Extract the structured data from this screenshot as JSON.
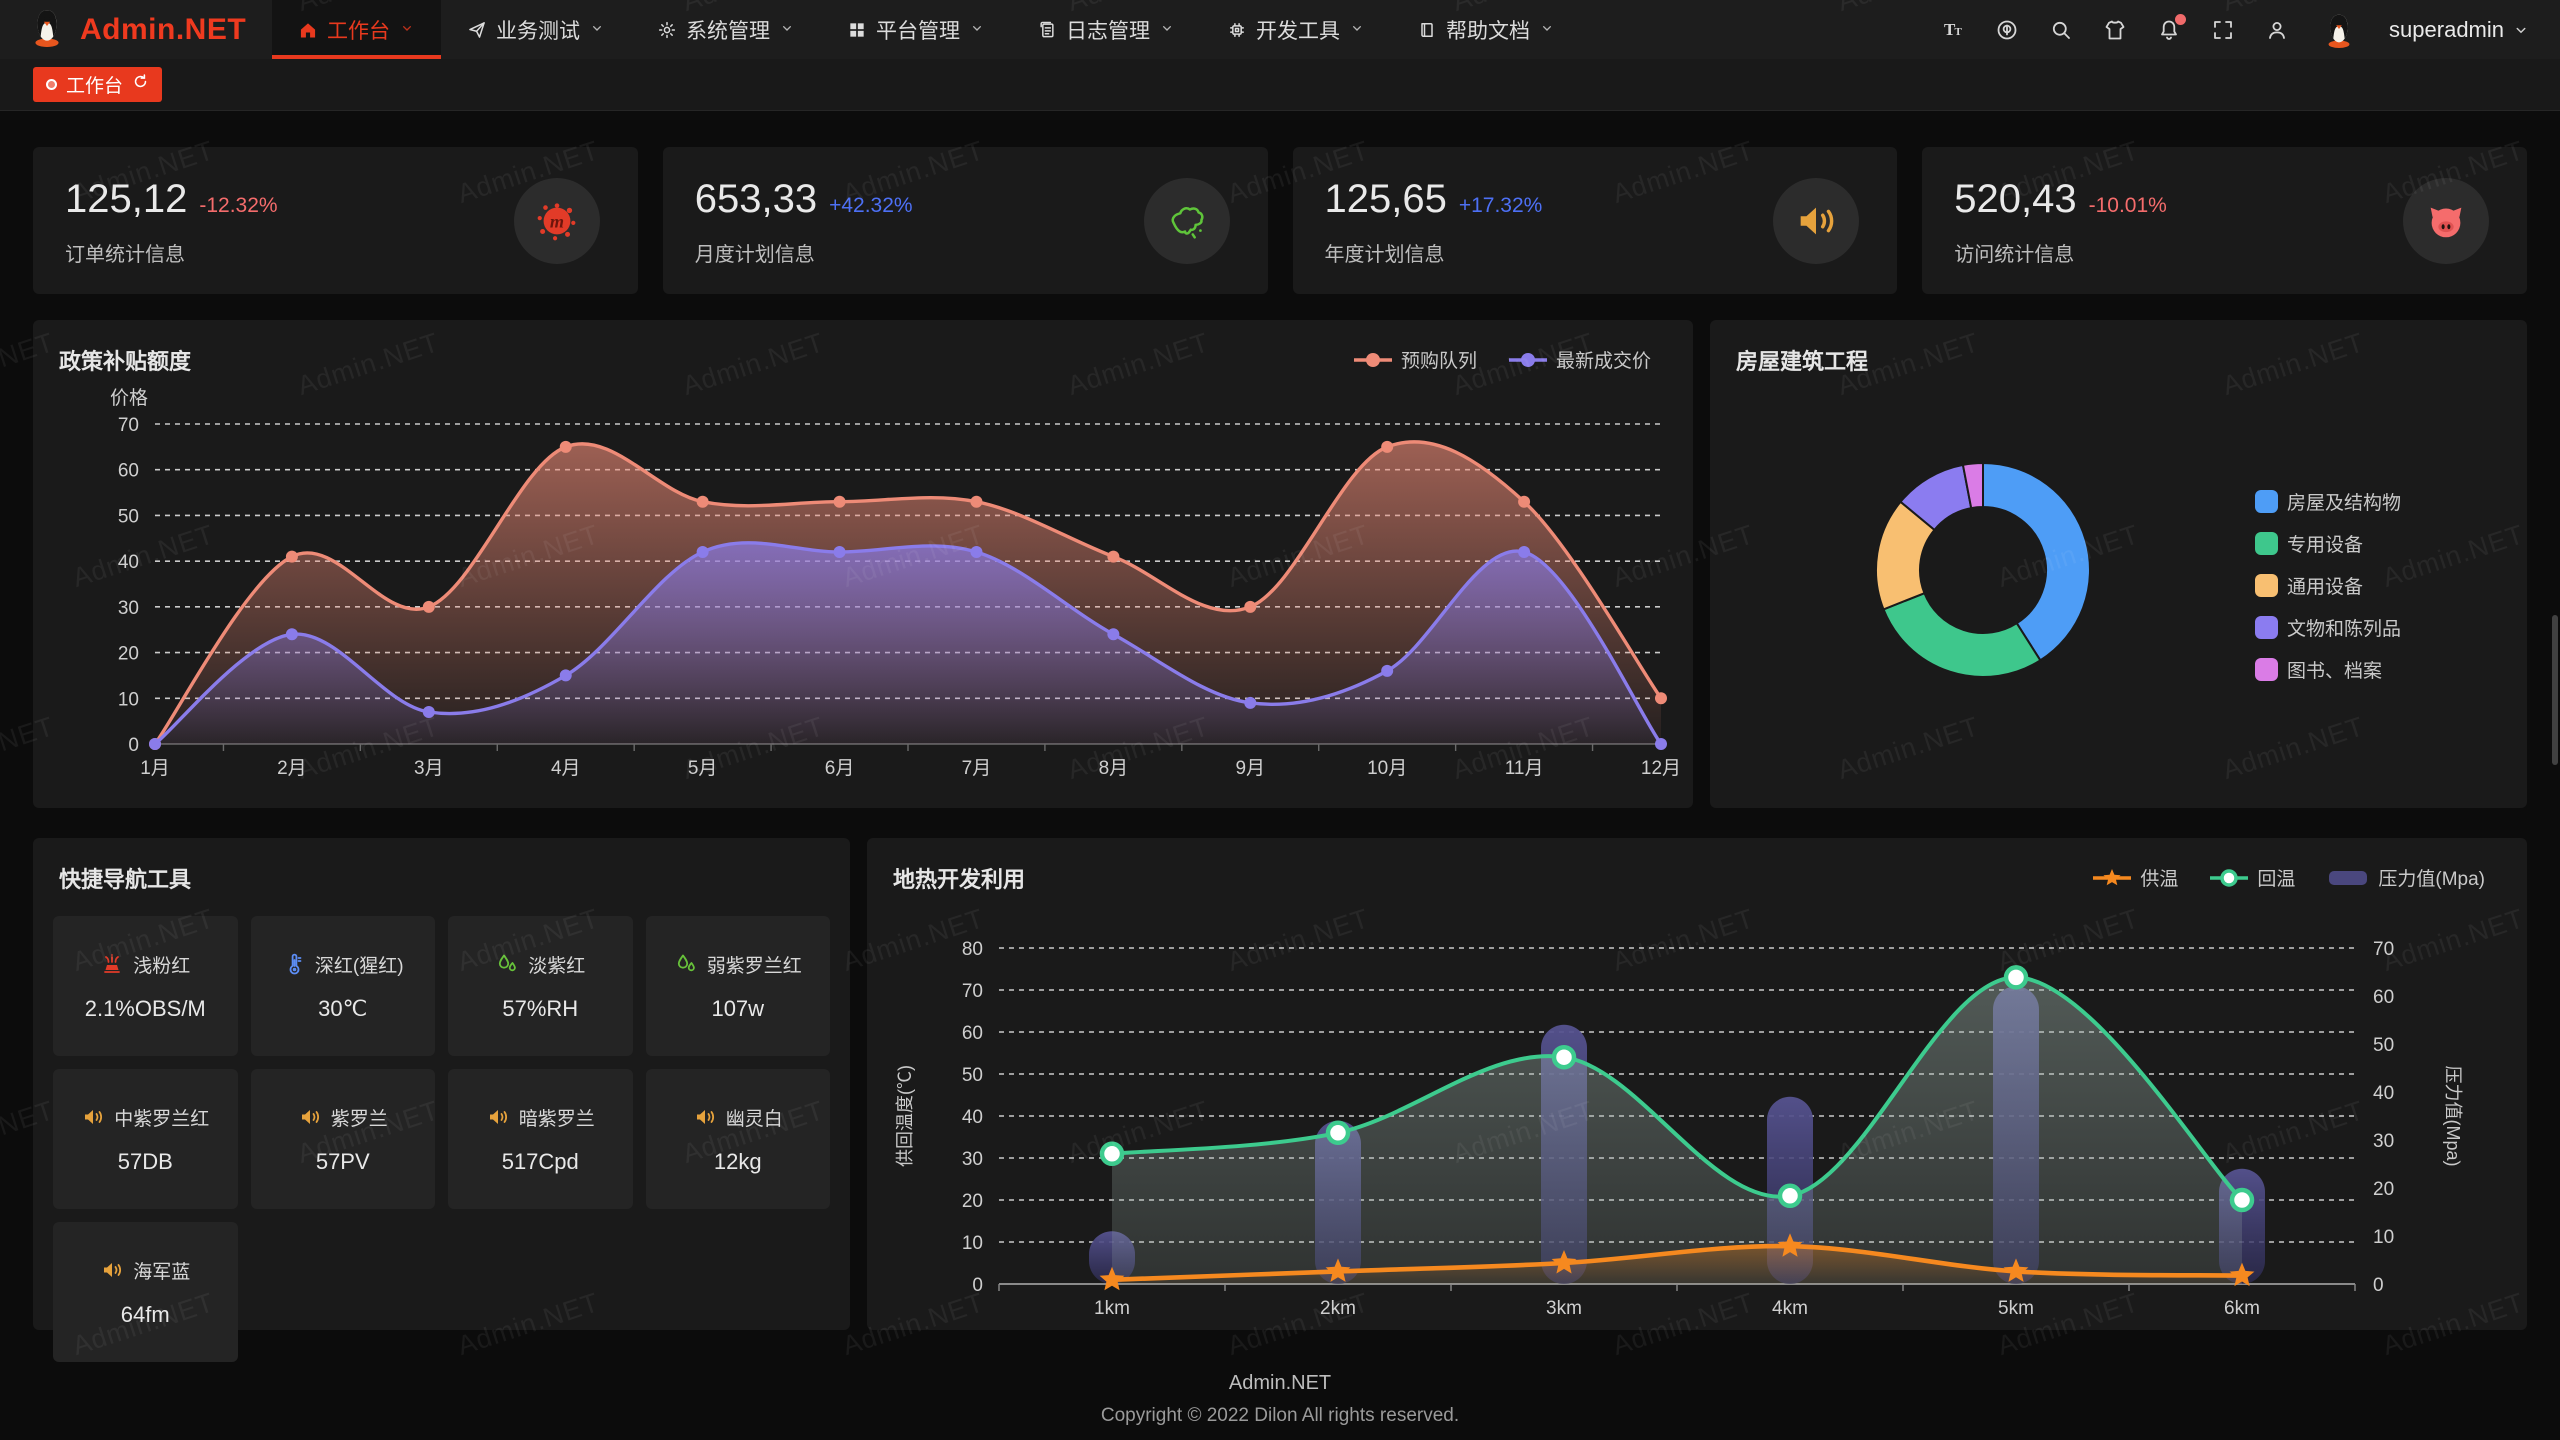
{
  "brand": {
    "name": "Admin.NET",
    "color": "#ef3a1f"
  },
  "accent": "#e8391e",
  "nav": {
    "items": [
      {
        "key": "workbench",
        "label": "工作台",
        "icon": "home-icon",
        "active": true
      },
      {
        "key": "business-test",
        "label": "业务测试",
        "icon": "send-icon",
        "active": false
      },
      {
        "key": "system-admin",
        "label": "系统管理",
        "icon": "gear-icon",
        "active": false
      },
      {
        "key": "platform-admin",
        "label": "平台管理",
        "icon": "grid-icon",
        "active": false
      },
      {
        "key": "log-admin",
        "label": "日志管理",
        "icon": "log-icon",
        "active": false
      },
      {
        "key": "dev-tools",
        "label": "开发工具",
        "icon": "chip-icon",
        "active": false
      },
      {
        "key": "help-docs",
        "label": "帮助文档",
        "icon": "book-icon",
        "active": false
      }
    ]
  },
  "topbar": {
    "icons": [
      {
        "key": "font-size-icon",
        "badge": false
      },
      {
        "key": "language-icon",
        "badge": false
      },
      {
        "key": "search-icon",
        "badge": false
      },
      {
        "key": "theme-icon",
        "badge": false
      },
      {
        "key": "bell-icon",
        "badge": true
      },
      {
        "key": "fullscreen-icon",
        "badge": false
      },
      {
        "key": "user-icon",
        "badge": false
      }
    ],
    "user": "superadmin"
  },
  "tabbar": {
    "tab_label": "工作台"
  },
  "stats": [
    {
      "value": "125,12",
      "delta": "-12.32%",
      "delta_color": "#f56c6c",
      "label": "订单统计信息",
      "icon": "meetup-blob-icon",
      "icon_color": "#e23b28"
    },
    {
      "value": "653,33",
      "delta": "+42.32%",
      "delta_color": "#4d70f5",
      "label": "月度计划信息",
      "icon": "china-map-icon",
      "icon_color": "#5fc53a"
    },
    {
      "value": "125,65",
      "delta": "+17.32%",
      "delta_color": "#4d70f5",
      "label": "年度计划信息",
      "icon": "speaker-icon",
      "icon_color": "#e6a23c"
    },
    {
      "value": "520,43",
      "delta": "-10.01%",
      "delta_color": "#f56c6c",
      "label": "访问统计信息",
      "icon": "pig-icon",
      "icon_color": "#f56c6c"
    }
  ],
  "chart_data": [
    {
      "id": "policy-subsidy",
      "type": "area",
      "title": "政策补贴额度",
      "ylabel": "价格",
      "ylim": [
        0,
        70
      ],
      "ytick_interval": 10,
      "grid": true,
      "legend_position": "top-right",
      "categories": [
        "1月",
        "2月",
        "3月",
        "4月",
        "5月",
        "6月",
        "7月",
        "8月",
        "9月",
        "10月",
        "11月",
        "12月"
      ],
      "series": [
        {
          "name": "预购队列",
          "color": "#ee8b77",
          "values": [
            0,
            41,
            30,
            65,
            53,
            53,
            53,
            41,
            30,
            65,
            53,
            10
          ]
        },
        {
          "name": "最新成交价",
          "color": "#8a7cea",
          "values": [
            0,
            24,
            7,
            15,
            42,
            42,
            42,
            24,
            9,
            16,
            42,
            0
          ]
        }
      ]
    },
    {
      "id": "housing-project",
      "type": "pie",
      "title": "房屋建筑工程",
      "legend_position": "right",
      "labels": [
        "房屋及结构物",
        "专用设备",
        "通用设备",
        "文物和陈列品",
        "图书、档案"
      ],
      "values": [
        41,
        28,
        17,
        11,
        3
      ],
      "colors": [
        "#4e9df6",
        "#3ec78c",
        "#f8bf71",
        "#8b7cf0",
        "#da7ce6"
      ]
    },
    {
      "id": "geothermal",
      "type": "line",
      "title": "地热开发利用",
      "categories": [
        "1km",
        "2km",
        "3km",
        "4km",
        "5km",
        "6km"
      ],
      "ylabel_left": "供回温度(℃)",
      "ylim_left": [
        0,
        80
      ],
      "ylabel_right": "压力值(Mpa)",
      "ylim_right": [
        0,
        70
      ],
      "ytick_interval": 10,
      "grid": true,
      "legend_position": "top-right",
      "series": [
        {
          "name": "供温",
          "kind": "line",
          "marker": "star",
          "axis": "left",
          "color": "#f6891f",
          "values": [
            1,
            3,
            5,
            9,
            3,
            2
          ]
        },
        {
          "name": "回温",
          "kind": "line",
          "marker": "circle",
          "axis": "left",
          "color": "#3dcb8e",
          "values": [
            31,
            36,
            54,
            21,
            73,
            20
          ]
        },
        {
          "name": "压力值(Mpa)",
          "kind": "bar",
          "marker": "rect",
          "axis": "right",
          "color": "#4a477e",
          "values": [
            11,
            34,
            54,
            39,
            62,
            24
          ]
        }
      ]
    }
  ],
  "tools": {
    "title": "快捷导航工具",
    "items": [
      {
        "name": "浅粉红",
        "value": "2.1%OBS/M",
        "icon": "fountain-icon",
        "icon_color": "#e23b28"
      },
      {
        "name": "深红(猩红)",
        "value": "30℃",
        "icon": "thermometer-icon",
        "icon_color": "#5c8df5"
      },
      {
        "name": "淡紫红",
        "value": "57%RH",
        "icon": "humidity-icon",
        "icon_color": "#67c23a"
      },
      {
        "name": "弱紫罗兰红",
        "value": "107w",
        "icon": "humidity-icon",
        "icon_color": "#67c23a"
      },
      {
        "name": "中紫罗兰红",
        "value": "57DB",
        "icon": "speaker-icon",
        "icon_color": "#e6a23c"
      },
      {
        "name": "紫罗兰",
        "value": "57PV",
        "icon": "speaker-icon",
        "icon_color": "#e6a23c"
      },
      {
        "name": "暗紫罗兰",
        "value": "517Cpd",
        "icon": "speaker-icon",
        "icon_color": "#e6a23c"
      },
      {
        "name": "幽灵白",
        "value": "12kg",
        "icon": "speaker-icon",
        "icon_color": "#e6a23c"
      },
      {
        "name": "海军蓝",
        "value": "64fm",
        "icon": "speaker-icon",
        "icon_color": "#e6a23c"
      }
    ]
  },
  "footer": {
    "line1": "Admin.NET",
    "line2": "Copyright © 2022 Dilon All rights reserved."
  },
  "watermark": {
    "text": "Admin.NET"
  }
}
